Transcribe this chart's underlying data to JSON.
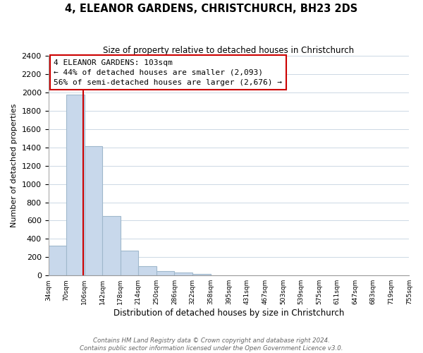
{
  "title": "4, ELEANOR GARDENS, CHRISTCHURCH, BH23 2DS",
  "subtitle": "Size of property relative to detached houses in Christchurch",
  "xlabel": "Distribution of detached houses by size in Christchurch",
  "ylabel": "Number of detached properties",
  "bar_edges": [
    34,
    70,
    106,
    142,
    178,
    214,
    250,
    286,
    322,
    358,
    395,
    431,
    467,
    503,
    539,
    575,
    611,
    647,
    683,
    719,
    755
  ],
  "bar_heights": [
    325,
    1975,
    1410,
    650,
    275,
    100,
    45,
    30,
    20,
    0,
    0,
    0,
    0,
    0,
    0,
    0,
    0,
    0,
    0,
    0
  ],
  "bar_color": "#c8d8eb",
  "bar_edge_color": "#a0b8cc",
  "property_line_x": 103,
  "property_line_color": "#cc0000",
  "annotation_line1": "4 ELEANOR GARDENS: 103sqm",
  "annotation_line2": "← 44% of detached houses are smaller (2,093)",
  "annotation_line3": "56% of semi-detached houses are larger (2,676) →",
  "annotation_box_color": "#ffffff",
  "annotation_box_edge": "#cc0000",
  "ylim": [
    0,
    2400
  ],
  "yticks": [
    0,
    200,
    400,
    600,
    800,
    1000,
    1200,
    1400,
    1600,
    1800,
    2000,
    2200,
    2400
  ],
  "xtick_labels": [
    "34sqm",
    "70sqm",
    "106sqm",
    "142sqm",
    "178sqm",
    "214sqm",
    "250sqm",
    "286sqm",
    "322sqm",
    "358sqm",
    "395sqm",
    "431sqm",
    "467sqm",
    "503sqm",
    "539sqm",
    "575sqm",
    "611sqm",
    "647sqm",
    "683sqm",
    "719sqm",
    "755sqm"
  ],
  "footer_text": "Contains HM Land Registry data © Crown copyright and database right 2024.\nContains public sector information licensed under the Open Government Licence v3.0.",
  "background_color": "#ffffff",
  "grid_color": "#ccd8e4"
}
